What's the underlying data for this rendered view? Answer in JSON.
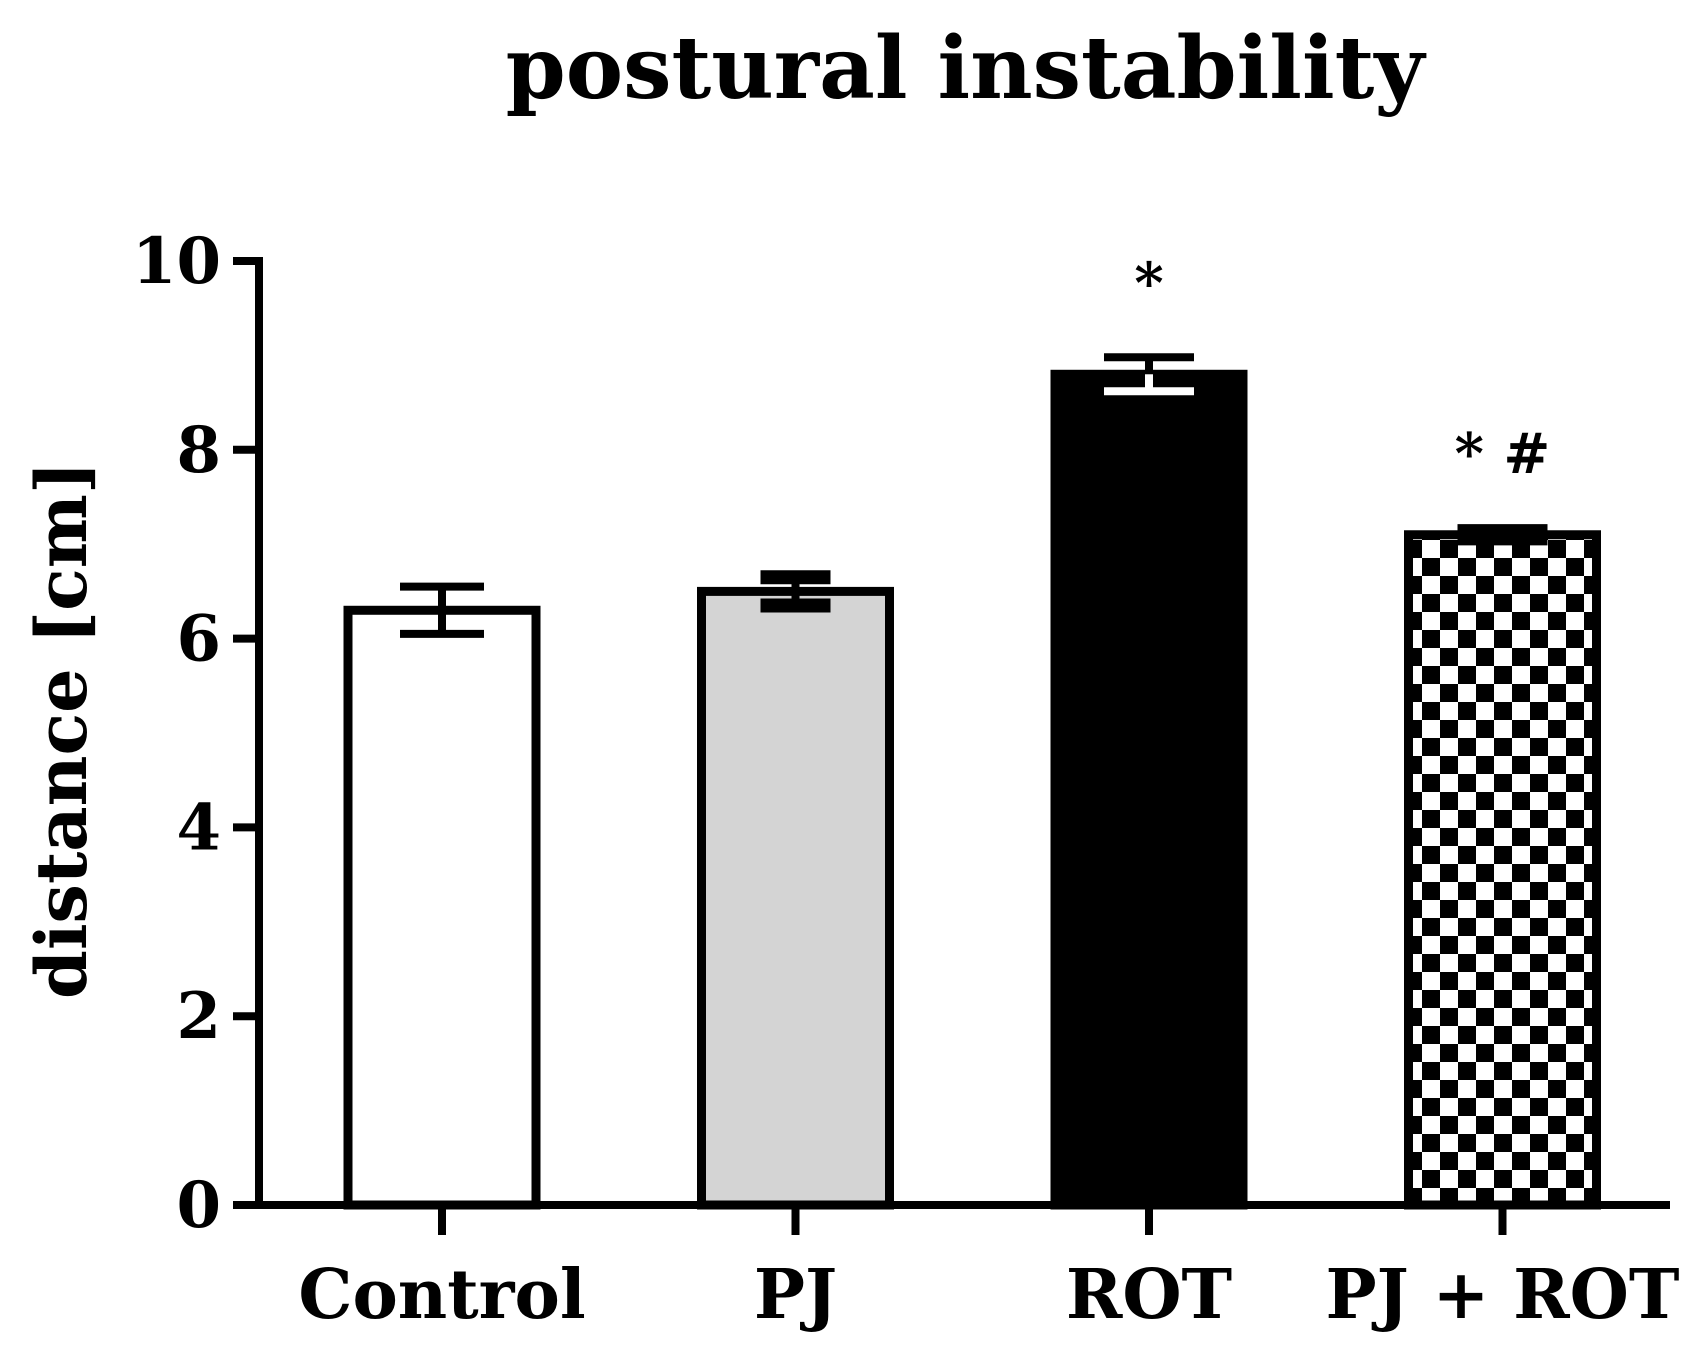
{
  "chart_data": {
    "type": "bar",
    "title": "postural instability",
    "xlabel": "",
    "ylabel": "distance [cm]",
    "ylim": [
      0,
      10
    ],
    "yticks": [
      0,
      2,
      4,
      6,
      8,
      10
    ],
    "categories": [
      "Control",
      "PJ",
      "ROT",
      "PJ + ROT"
    ],
    "values": [
      6.3,
      6.5,
      8.8,
      7.1
    ],
    "errors": [
      0.25,
      0.15,
      0.18,
      0.07
    ],
    "fills": [
      "white",
      "light-gray",
      "black",
      "checkerboard"
    ],
    "annotations": [
      "",
      "",
      "*",
      "* #"
    ],
    "colors": {
      "axis": "#000000",
      "gray": "#d4d4d4",
      "black": "#000000",
      "white": "#ffffff"
    }
  }
}
